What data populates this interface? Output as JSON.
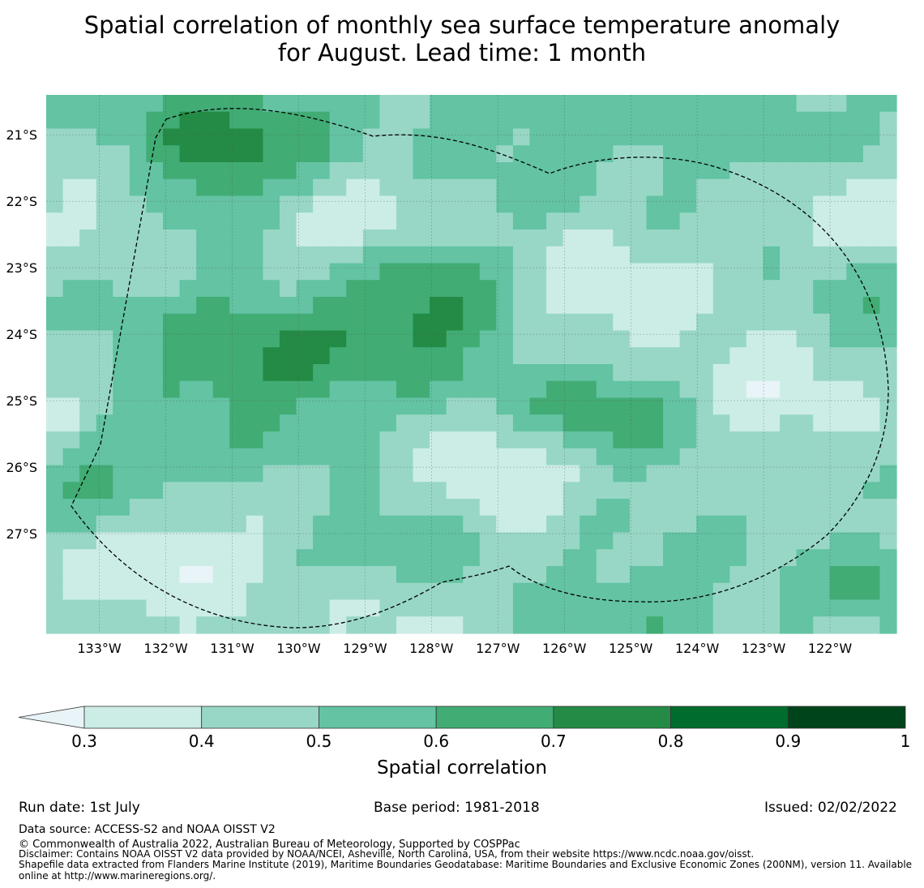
{
  "title_line1": "Spatial correlation of monthly sea surface temperature anomaly",
  "title_line2": "for August. Lead time: 1 month",
  "map": {
    "lon_labels": [
      "133°W",
      "132°W",
      "131°W",
      "130°W",
      "129°W",
      "128°W",
      "127°W",
      "126°W",
      "125°W",
      "124°W",
      "123°W",
      "122°W"
    ],
    "lat_labels": [
      "21°S",
      "22°S",
      "23°S",
      "24°S",
      "25°S",
      "26°S",
      "27°S"
    ],
    "lon_range": [
      -133.8,
      -121.0
    ],
    "lat_range": [
      -28.5,
      -20.4
    ],
    "grid_lines": true,
    "boundary": "EEZ outline (dashed)"
  },
  "colorbar": {
    "label": "Spatial correlation",
    "ticks": [
      "0.3",
      "0.4",
      "0.5",
      "0.6",
      "0.7",
      "0.8",
      "0.9",
      "1"
    ],
    "colors": [
      "#ccede6",
      "#98d7c6",
      "#63c3a3",
      "#41ac74",
      "#238b45",
      "#006d2c",
      "#00441b"
    ],
    "under_color": "#e8f4f8",
    "extend": "min"
  },
  "footer": {
    "run_date": "Run date: 1st July",
    "base_period": "Base period: 1981-2018",
    "issued": "Issued: 02/02/2022",
    "data_source": "Data source: ACCESS-S2 and NOAA OISST V2",
    "copyright": "© Commonwealth of Australia 2022, Australian Bureau of Meteorology, Supported by COSPPac",
    "disclaimer": "Disclaimer: Contains NOAA OISST V2 data provided by NOAA/NCEI, Asheville, North Carolina, USA, from their website https://www.ncdc.noaa.gov/oisst.",
    "shapefile_1": "Shapefile data extracted from Flanders Marine Institute (2019), Maritime Boundaries Geodatabase: Maritime Boundaries and Exclusive Economic Zones (200NM), version 11. Available",
    "shapefile_2": "online at http://www.marineregions.org/."
  }
}
